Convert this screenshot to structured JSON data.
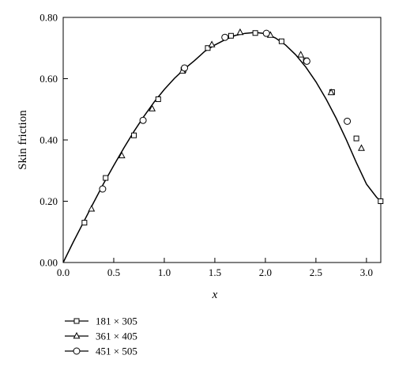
{
  "chart_data": {
    "type": "line",
    "title": "",
    "xlabel": "x",
    "ylabel": "Skin friction",
    "xlim": [
      0,
      3.14159
    ],
    "ylim": [
      0,
      0.8
    ],
    "xticks": [
      "0.0",
      "0.5",
      "1.0",
      "1.5",
      "2.0",
      "2.5",
      "3.0"
    ],
    "xtick_values": [
      0,
      0.5,
      1.0,
      1.5,
      2.0,
      2.5,
      3.0
    ],
    "yticks": [
      "0.00",
      "0.20",
      "0.40",
      "0.60",
      "0.80"
    ],
    "ytick_values": [
      0,
      0.2,
      0.4,
      0.6,
      0.8
    ],
    "grid": false,
    "legend_position": "bottom-left",
    "curve": {
      "x": [
        0,
        0.1,
        0.2,
        0.3,
        0.4,
        0.5,
        0.6,
        0.7,
        0.8,
        0.9,
        1.0,
        1.1,
        1.2,
        1.3,
        1.4,
        1.5,
        1.6,
        1.7,
        1.8,
        1.9,
        2.0,
        2.1,
        2.2,
        2.3,
        2.4,
        2.5,
        2.6,
        2.7,
        2.8,
        2.9,
        3.0,
        3.1,
        3.14159
      ],
      "y": [
        0,
        0.067,
        0.131,
        0.195,
        0.258,
        0.317,
        0.374,
        0.428,
        0.478,
        0.524,
        0.565,
        0.601,
        0.632,
        0.659,
        0.689,
        0.71,
        0.727,
        0.741,
        0.748,
        0.751,
        0.747,
        0.733,
        0.71,
        0.678,
        0.638,
        0.59,
        0.534,
        0.471,
        0.401,
        0.326,
        0.256,
        0.213,
        0.2
      ]
    },
    "series": [
      {
        "name": "181 × 305",
        "marker": "square",
        "x": [
          0.21,
          0.42,
          0.7,
          0.94,
          1.19,
          1.43,
          1.66,
          1.9,
          2.16,
          2.4,
          2.66,
          2.9,
          3.14
        ],
        "y": [
          0.13,
          0.276,
          0.415,
          0.533,
          0.629,
          0.7,
          0.74,
          0.749,
          0.722,
          0.66,
          0.556,
          0.405,
          0.2
        ]
      },
      {
        "name": "361 × 405",
        "marker": "triangle",
        "x": [
          0.28,
          0.58,
          0.88,
          1.18,
          1.47,
          1.75,
          2.05,
          2.35,
          2.65,
          2.95
        ],
        "y": [
          0.175,
          0.349,
          0.502,
          0.625,
          0.711,
          0.751,
          0.742,
          0.678,
          0.555,
          0.373
        ]
      },
      {
        "name": "451 × 505",
        "marker": "circle",
        "x": [
          0.39,
          0.79,
          1.2,
          1.6,
          2.01,
          2.41,
          2.81
        ],
        "y": [
          0.24,
          0.464,
          0.635,
          0.735,
          0.748,
          0.657,
          0.461
        ]
      }
    ]
  }
}
